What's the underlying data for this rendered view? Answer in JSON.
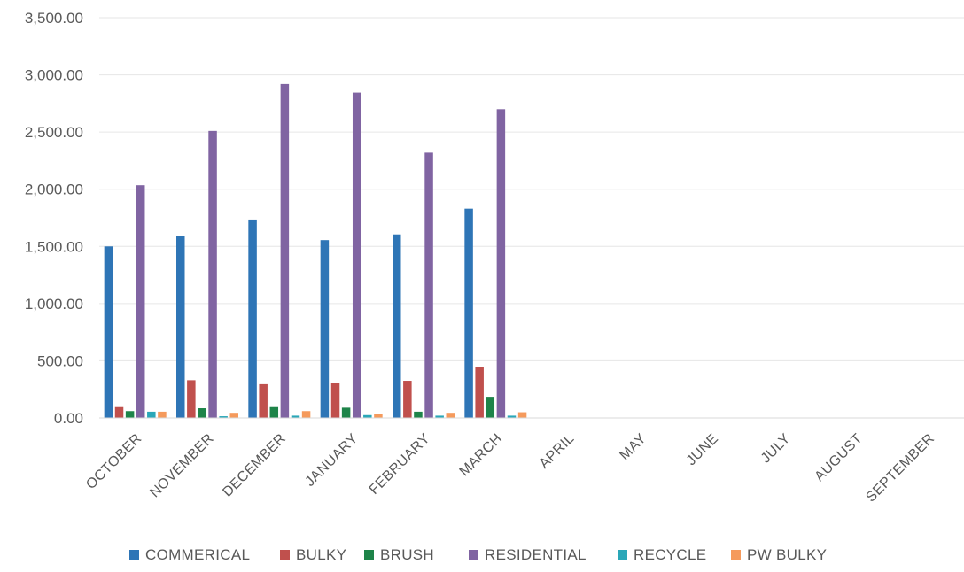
{
  "chart_data": {
    "type": "bar",
    "title": "",
    "xlabel": "",
    "ylabel": "",
    "ylim": [
      0,
      3500
    ],
    "yticks": [
      0,
      500,
      1000,
      1500,
      2000,
      2500,
      3000,
      3500
    ],
    "ytick_labels": [
      "0.00",
      "500.00",
      "1,000.00",
      "1,500.00",
      "2,000.00",
      "2,500.00",
      "3,000.00",
      "3,500.00"
    ],
    "grid": true,
    "legend_position": "bottom",
    "categories": [
      "OCTOBER",
      "NOVEMBER",
      "DECEMBER",
      "JANUARY",
      "FEBRUARY",
      "MARCH",
      "APRIL",
      "MAY",
      "JUNE",
      "JULY",
      "AUGUST",
      "SEPTEMBER"
    ],
    "series": [
      {
        "name": "COMMERICAL",
        "color": "#2E75B6",
        "values": [
          1500,
          1590,
          1735,
          1555,
          1605,
          1830,
          null,
          null,
          null,
          null,
          null,
          null
        ]
      },
      {
        "name": "BULKY",
        "color": "#C0504D",
        "values": [
          95,
          330,
          295,
          305,
          325,
          445,
          null,
          null,
          null,
          null,
          null,
          null
        ]
      },
      {
        "name": "BRUSH",
        "color": "#1E8449",
        "values": [
          60,
          85,
          95,
          90,
          55,
          185,
          null,
          null,
          null,
          null,
          null,
          null
        ]
      },
      {
        "name": "RESIDENTIAL",
        "color": "#8064A2",
        "values": [
          2035,
          2510,
          2920,
          2845,
          2320,
          2700,
          null,
          null,
          null,
          null,
          null,
          null
        ]
      },
      {
        "name": "RECYCLE",
        "color": "#2AA7B8",
        "values": [
          55,
          15,
          20,
          25,
          20,
          20,
          null,
          null,
          null,
          null,
          null,
          null
        ]
      },
      {
        "name": "PW BULKY",
        "color": "#F59A5C",
        "values": [
          55,
          45,
          60,
          35,
          45,
          50,
          null,
          null,
          null,
          null,
          null,
          null
        ]
      }
    ]
  }
}
